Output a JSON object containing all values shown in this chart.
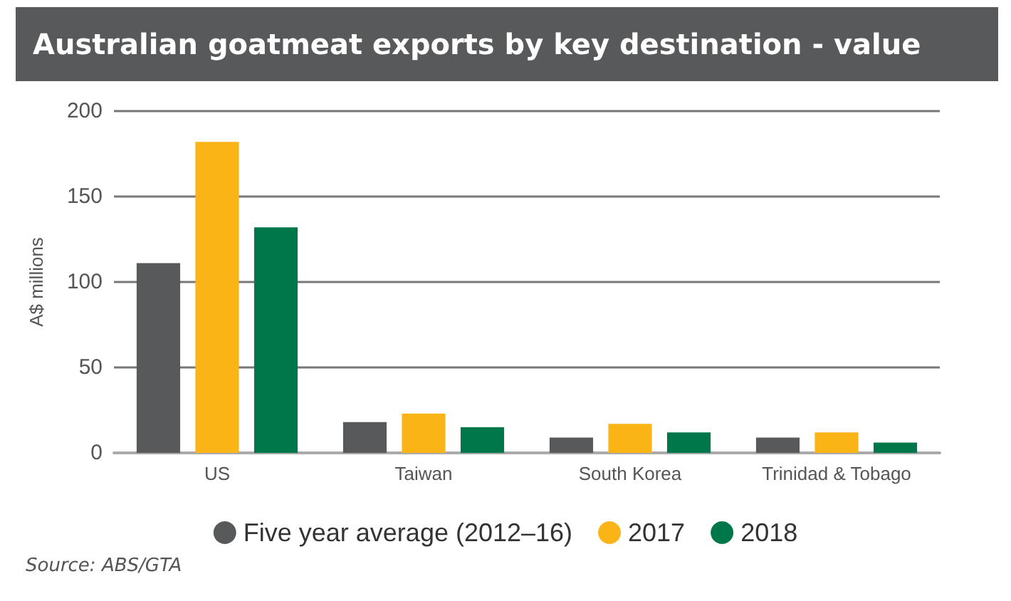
{
  "chart_data": {
    "type": "bar",
    "title": "Australian goatmeat exports by key destination - value",
    "ylabel": "A$ millions",
    "categories": [
      "US",
      "Taiwan",
      "South Korea",
      "Trinidad & Tobago"
    ],
    "series": [
      {
        "name": "Five year average (2012–16)",
        "color": "#58595b",
        "values": [
          111,
          18,
          9,
          9
        ]
      },
      {
        "name": "2017",
        "color": "#fbb416",
        "values": [
          182,
          23,
          17,
          12
        ]
      },
      {
        "name": "2018",
        "color": "#00774a",
        "values": [
          132,
          15,
          12,
          6
        ]
      }
    ],
    "ylim": [
      0,
      200
    ],
    "yticks": [
      0,
      50,
      100,
      150,
      200
    ],
    "grid": "y",
    "legend": "bottom",
    "annotations": [
      "Source: ABS/GTA"
    ]
  }
}
